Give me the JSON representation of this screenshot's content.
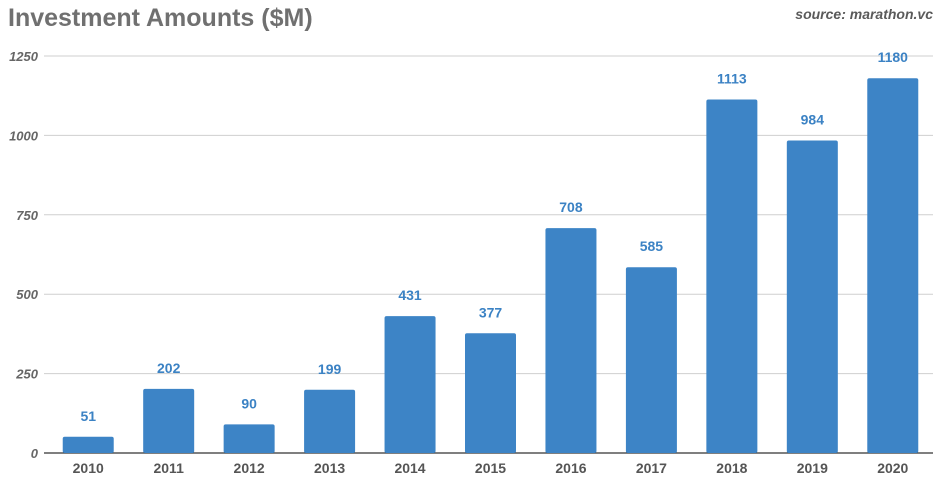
{
  "chart_data": {
    "type": "bar",
    "title": "Investment Amounts ($M)",
    "source": "source: marathon.vc",
    "categories": [
      "2010",
      "2011",
      "2012",
      "2013",
      "2014",
      "2015",
      "2016",
      "2017",
      "2018",
      "2019",
      "2020"
    ],
    "values": [
      51,
      202,
      90,
      199,
      431,
      377,
      708,
      585,
      1113,
      984,
      1180
    ],
    "ylim": [
      0,
      1250
    ],
    "yticks": [
      0,
      250,
      500,
      750,
      1000,
      1250
    ],
    "grid": true,
    "bar_color": "#3d84c6",
    "label_color": "#3b82c4"
  }
}
